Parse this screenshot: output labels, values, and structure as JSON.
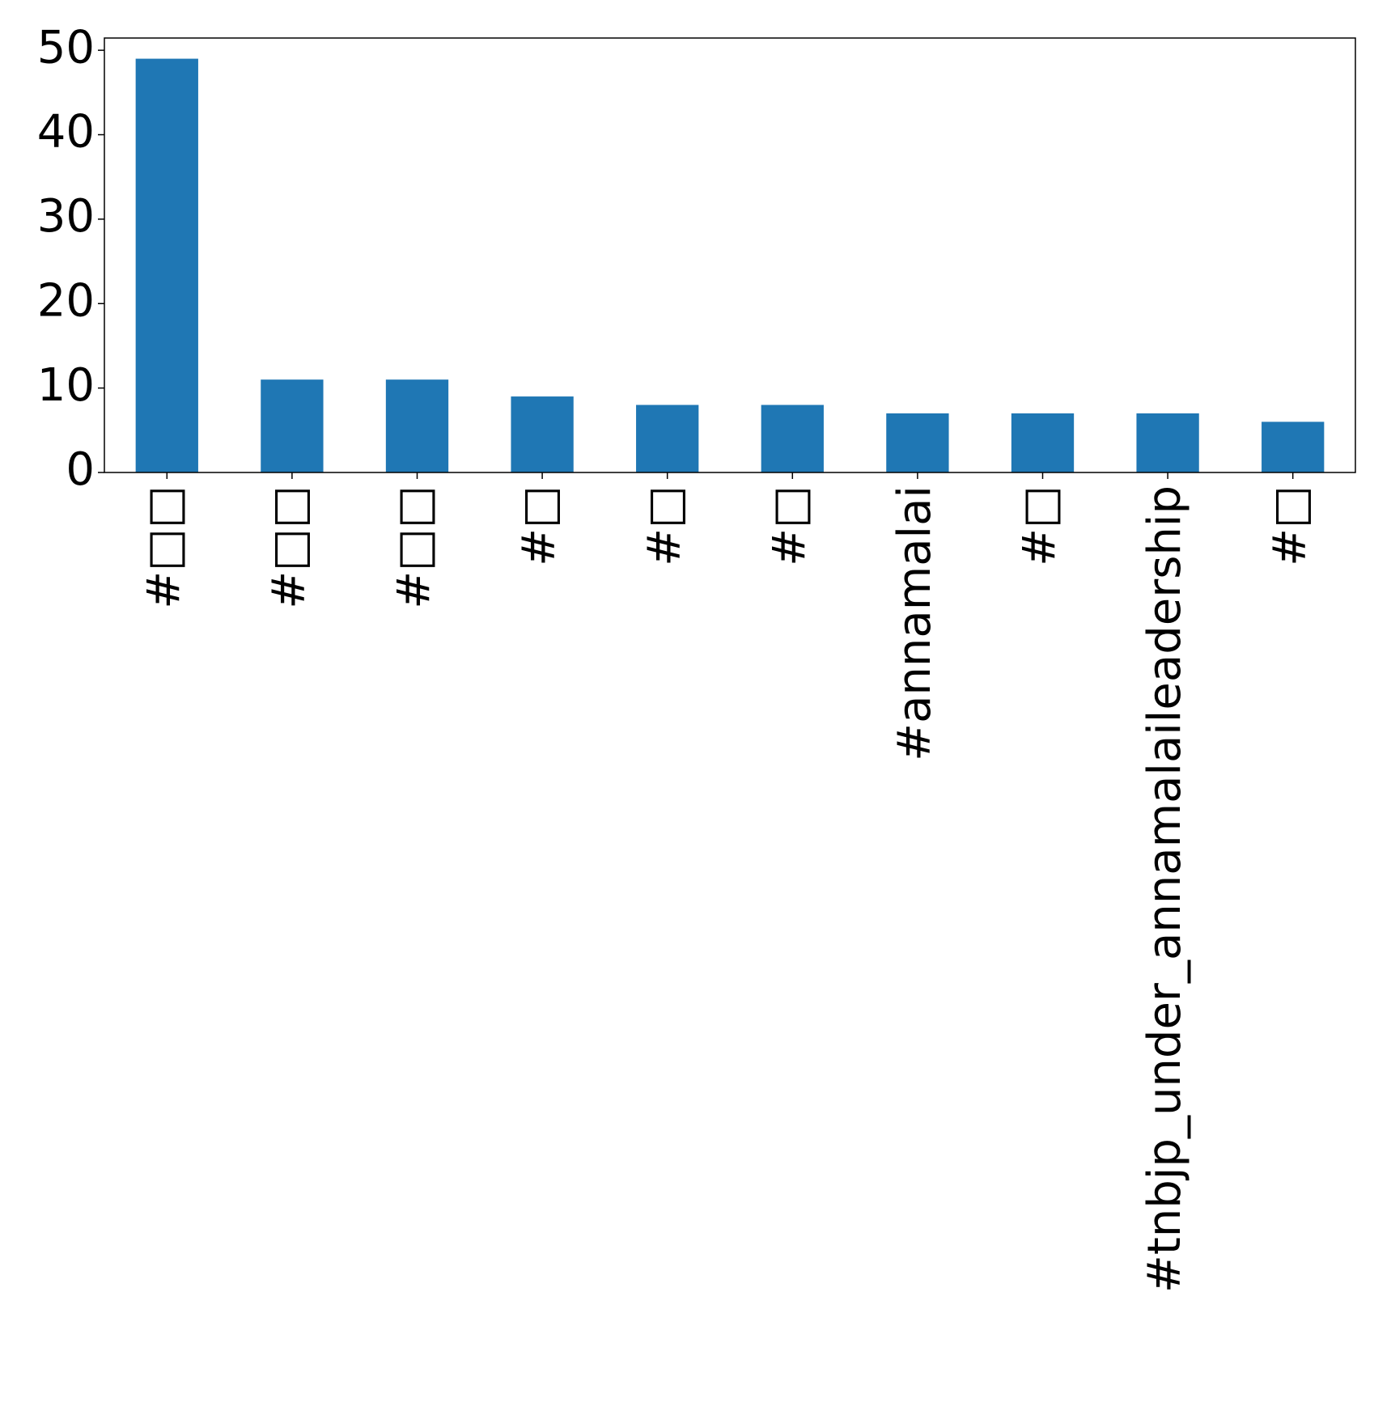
{
  "chart_data": {
    "type": "bar",
    "categories": [
      "#□□",
      "#□□",
      "#□□",
      "#□",
      "#□",
      "#□",
      "#annamalai",
      "#□",
      "#tnbjp_under_annamalaileadership",
      "#□"
    ],
    "values": [
      49,
      11,
      11,
      9,
      8,
      8,
      7,
      7,
      7,
      6
    ],
    "color": "#1f77b4",
    "ylim": [
      0,
      51.45
    ],
    "yticks": [
      0,
      10,
      20,
      30,
      40,
      50
    ],
    "grid": false
  }
}
